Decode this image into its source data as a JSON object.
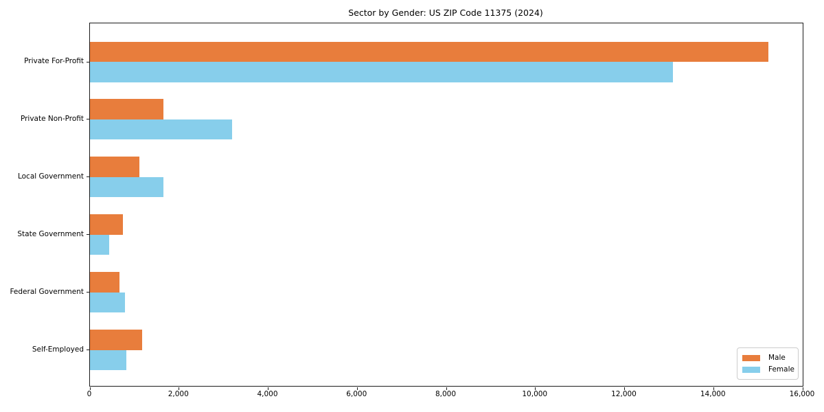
{
  "chart_data": {
    "type": "bar",
    "orientation": "horizontal",
    "title": "Sector by Gender: US ZIP Code 11375 (2024)",
    "categories": [
      "Private For-Profit",
      "Private Non-Profit",
      "Local Government",
      "State Government",
      "Federal Government",
      "Self-Employed"
    ],
    "series": [
      {
        "name": "Male",
        "color": "#E87D3C",
        "values": [
          15230,
          1650,
          1110,
          740,
          660,
          1170
        ]
      },
      {
        "name": "Female",
        "color": "#87CEEB",
        "values": [
          13090,
          3190,
          1650,
          430,
          790,
          820
        ]
      }
    ],
    "xlim": [
      0,
      16000
    ],
    "x_ticks": [
      0,
      2000,
      4000,
      6000,
      8000,
      10000,
      12000,
      14000,
      16000
    ],
    "x_tick_labels": [
      "0",
      "2,000",
      "4,000",
      "6,000",
      "8,000",
      "10,000",
      "12,000",
      "14,000",
      "16,000"
    ],
    "legend": {
      "position": "lower right"
    },
    "grid": false,
    "axis_color": "#1a1a1a"
  }
}
